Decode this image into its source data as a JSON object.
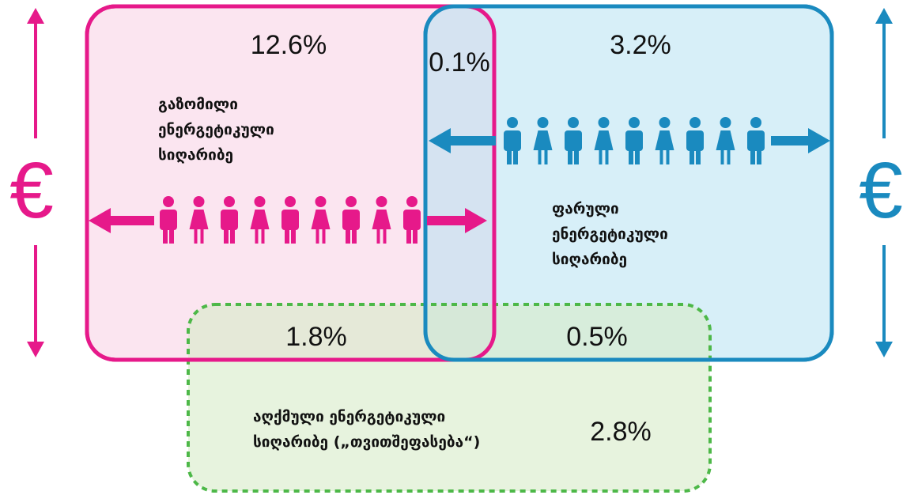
{
  "regions": {
    "measured": {
      "percent": "12.6%",
      "label_lines": [
        "გაზომილი",
        "ენერგეტიკული",
        "სიღარიბე"
      ]
    },
    "hidden": {
      "percent": "3.2%",
      "label_lines": [
        "ფარული",
        "ენერგეტიკული",
        "სიღარიბე"
      ]
    },
    "measured_hidden": {
      "percent": "0.1%"
    },
    "measured_perceived": {
      "percent": "1.8%"
    },
    "hidden_perceived": {
      "percent": "0.5%"
    },
    "perceived": {
      "percent": "2.8%",
      "label_lines": [
        "აღქმული ენერგეტიკული",
        "სიღარიბე („თვითშეფასება“)"
      ]
    }
  },
  "left_symbol": "€",
  "right_symbol": "€"
}
